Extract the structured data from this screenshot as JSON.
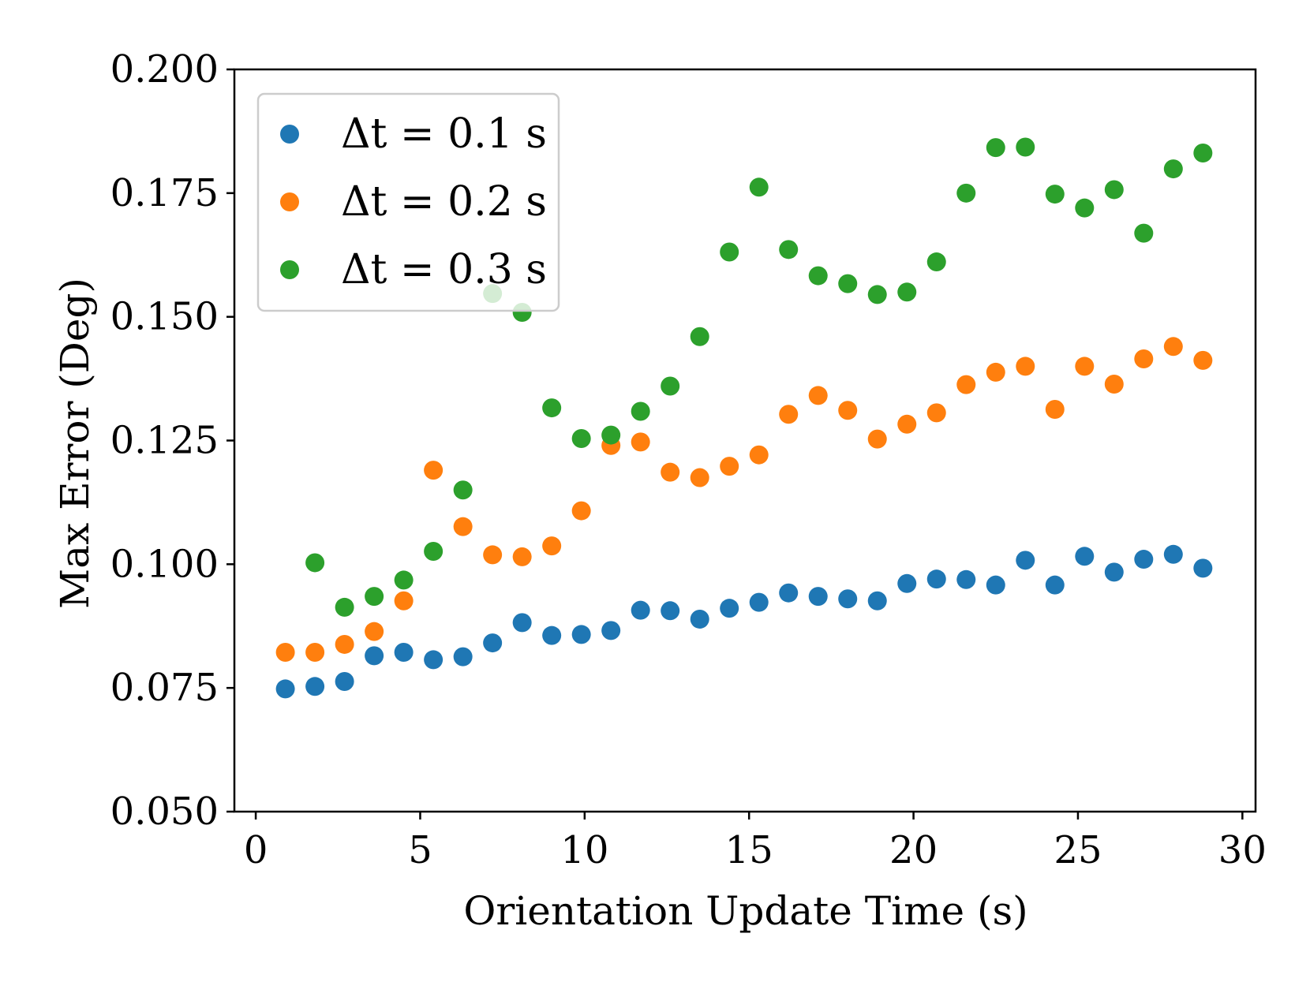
{
  "chart_data": {
    "type": "scatter",
    "xlabel": "Orientation Update Time (s)",
    "ylabel": "Max Error (Deg)",
    "xlim": [
      -0.65,
      30.4
    ],
    "ylim": [
      0.05,
      0.2
    ],
    "xticks": [
      0,
      5,
      10,
      15,
      20,
      25,
      30
    ],
    "yticks": [
      0.05,
      0.075,
      0.1,
      0.125,
      0.15,
      0.175,
      0.2
    ],
    "xtick_labels": [
      "0",
      "5",
      "10",
      "15",
      "20",
      "25",
      "30"
    ],
    "ytick_labels": [
      "0.050",
      "0.075",
      "0.100",
      "0.125",
      "0.150",
      "0.175",
      "0.200"
    ],
    "grid": false,
    "legend_position": "top-left",
    "series": [
      {
        "name": "Δt = 0.1 s",
        "color": "#1f77b4",
        "x": [
          0.9,
          1.8,
          2.7,
          3.6,
          4.5,
          5.4,
          6.3,
          7.2,
          8.1,
          9.0,
          9.9,
          10.8,
          11.7,
          12.6,
          13.5,
          14.4,
          15.3,
          16.2,
          17.1,
          18.0,
          18.9,
          19.8,
          20.7,
          21.6,
          22.5,
          23.4,
          24.3,
          25.2,
          26.1,
          27.0,
          27.9,
          28.8
        ],
        "y": [
          0.0748,
          0.0753,
          0.0763,
          0.0815,
          0.0822,
          0.0807,
          0.0813,
          0.0841,
          0.0882,
          0.0856,
          0.0858,
          0.0866,
          0.0907,
          0.0906,
          0.0889,
          0.0911,
          0.0923,
          0.0942,
          0.0935,
          0.093,
          0.0926,
          0.0961,
          0.097,
          0.0969,
          0.0958,
          0.1008,
          0.0958,
          0.1016,
          0.0984,
          0.101,
          0.102,
          0.0992
        ]
      },
      {
        "name": "Δt = 0.2 s",
        "color": "#ff7f0e",
        "x": [
          0.9,
          1.8,
          2.7,
          3.6,
          4.5,
          5.4,
          6.3,
          7.2,
          8.1,
          9.0,
          9.9,
          10.8,
          11.7,
          12.6,
          13.5,
          14.4,
          15.3,
          16.2,
          17.1,
          18.0,
          18.9,
          19.8,
          20.7,
          21.6,
          22.5,
          23.4,
          24.3,
          25.2,
          26.1,
          27.0,
          27.9,
          28.8
        ],
        "y": [
          0.0822,
          0.0822,
          0.0838,
          0.0864,
          0.0926,
          0.119,
          0.1076,
          0.1019,
          0.1015,
          0.1037,
          0.1108,
          0.124,
          0.1247,
          0.1186,
          0.1175,
          0.1198,
          0.1221,
          0.1303,
          0.1341,
          0.1311,
          0.1253,
          0.1283,
          0.1306,
          0.1363,
          0.1388,
          0.14,
          0.1313,
          0.14,
          0.1364,
          0.1415,
          0.144,
          0.1412
        ]
      },
      {
        "name": "Δt = 0.3 s",
        "color": "#2ca02c",
        "x": [
          1.8,
          2.7,
          3.6,
          4.5,
          5.4,
          6.3,
          7.2,
          8.1,
          9.0,
          9.9,
          10.8,
          11.7,
          12.6,
          13.5,
          14.4,
          15.3,
          16.2,
          17.1,
          18.0,
          18.9,
          19.8,
          20.7,
          21.6,
          22.5,
          23.4,
          24.3,
          25.2,
          26.1,
          27.0,
          27.9,
          28.8
        ],
        "y": [
          0.1003,
          0.0913,
          0.0935,
          0.0968,
          0.1026,
          0.115,
          0.1547,
          0.1509,
          0.1316,
          0.1254,
          0.1261,
          0.1309,
          0.136,
          0.146,
          0.1631,
          0.1762,
          0.1636,
          0.1583,
          0.1567,
          0.1545,
          0.155,
          0.1611,
          0.175,
          0.1842,
          0.1843,
          0.1748,
          0.172,
          0.1757,
          0.1669,
          0.1799,
          0.1831
        ]
      }
    ]
  }
}
